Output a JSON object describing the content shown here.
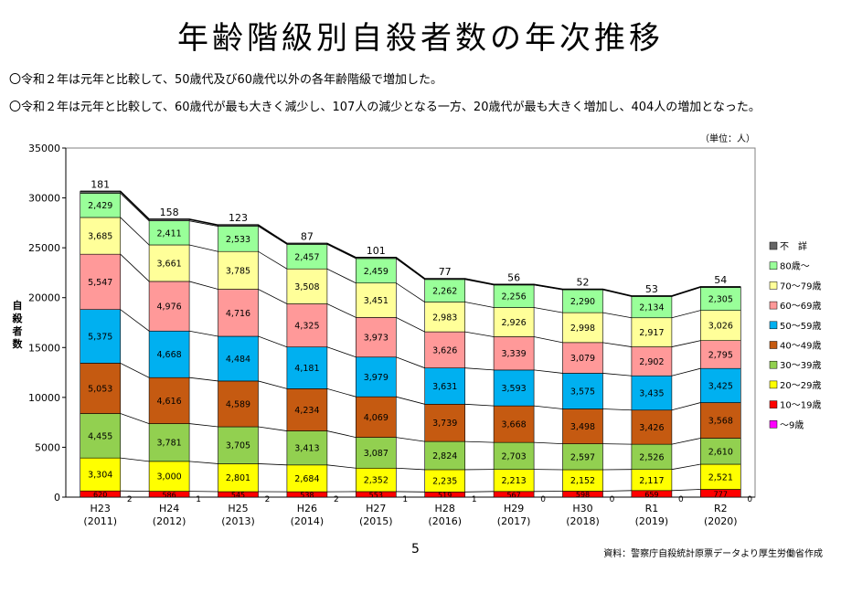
{
  "title": "年齢階級別自殺者数の年次推移",
  "bullets": [
    "〇令和２年は元年と比較して、50歳代及び60歳代以外の各年齢階級で増加した。",
    "〇令和２年は元年と比較して、60歳代が最も大きく減少し、107人の減少となる一方、20歳代が最も大きく増加し、404人の増加となった。"
  ],
  "unit_label": "（単位：人）",
  "page_number": "5",
  "source_note": "資料：警察庁自殺統計原票データより厚生労働省作成",
  "chart_data": {
    "type": "bar",
    "stacked": true,
    "ylabel": "自殺者数",
    "ylim": [
      0,
      35000
    ],
    "yticks": [
      0,
      5000,
      10000,
      15000,
      20000,
      25000,
      30000,
      35000
    ],
    "categories": [
      "H23",
      "H24",
      "H25",
      "H26",
      "H27",
      "H28",
      "H29",
      "H30",
      "R1",
      "R2"
    ],
    "category_years": [
      "(2011)",
      "(2012)",
      "(2013)",
      "(2014)",
      "(2015)",
      "(2016)",
      "(2017)",
      "(2018)",
      "(2019)",
      "(2020)"
    ],
    "legend_position": "right",
    "series": [
      {
        "name": "～9歳",
        "color": "#ff00ff",
        "values": [
          2,
          1,
          2,
          2,
          1,
          1,
          0,
          0,
          0,
          0
        ]
      },
      {
        "name": "10～19歳",
        "color": "#ff0000",
        "values": [
          620,
          586,
          545,
          538,
          553,
          519,
          567,
          598,
          659,
          777
        ]
      },
      {
        "name": "20～29歳",
        "color": "#ffff00",
        "values": [
          3304,
          3000,
          2801,
          2684,
          2352,
          2235,
          2213,
          2152,
          2117,
          2521
        ]
      },
      {
        "name": "30～39歳",
        "color": "#92d050",
        "values": [
          4455,
          3781,
          3705,
          3413,
          3087,
          2824,
          2703,
          2597,
          2526,
          2610
        ]
      },
      {
        "name": "40～49歳",
        "color": "#c55a11",
        "values": [
          5053,
          4616,
          4589,
          4234,
          4069,
          3739,
          3668,
          3498,
          3426,
          3568
        ]
      },
      {
        "name": "50～59歳",
        "color": "#00b0f0",
        "values": [
          5375,
          4668,
          4484,
          4181,
          3979,
          3631,
          3593,
          3575,
          3435,
          3425
        ]
      },
      {
        "name": "60～69歳",
        "color": "#ff9999",
        "values": [
          5547,
          4976,
          4716,
          4325,
          3973,
          3626,
          3339,
          3079,
          2902,
          2795
        ]
      },
      {
        "name": "70～79歳",
        "color": "#ffff99",
        "values": [
          3685,
          3661,
          3785,
          3508,
          3451,
          2983,
          2926,
          2998,
          2917,
          3026
        ]
      },
      {
        "name": "80歳～",
        "color": "#99ff99",
        "values": [
          2429,
          2411,
          2533,
          2457,
          2459,
          2262,
          2256,
          2290,
          2134,
          2305
        ]
      },
      {
        "name": "不　詳",
        "color": "#666666",
        "values": [
          181,
          158,
          123,
          87,
          101,
          77,
          56,
          52,
          53,
          54
        ]
      }
    ]
  }
}
